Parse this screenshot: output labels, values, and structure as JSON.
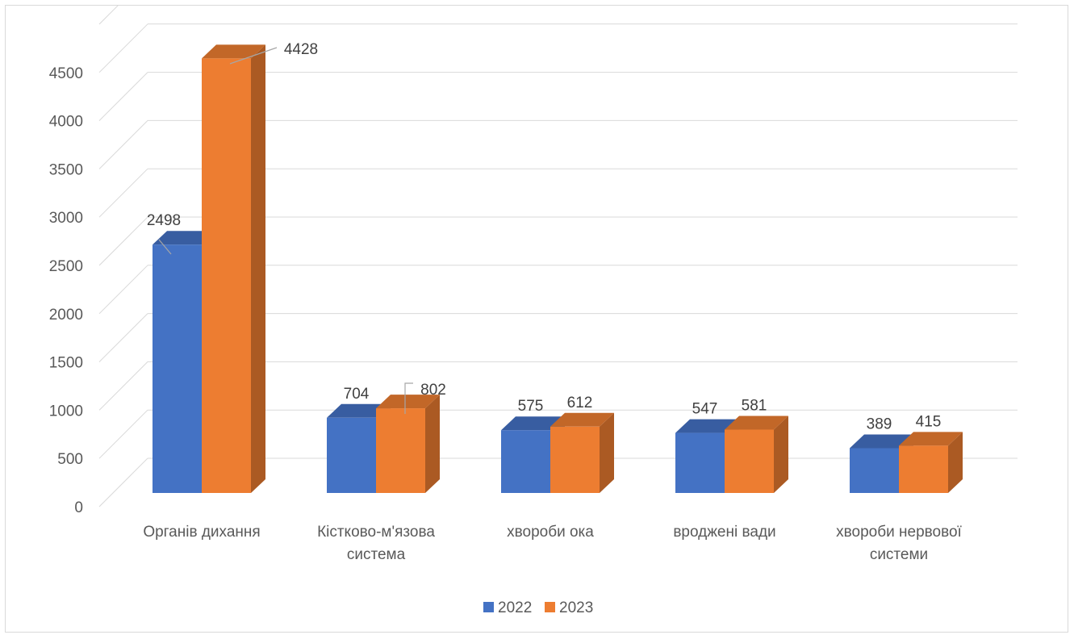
{
  "chart_data": {
    "type": "bar",
    "three_d": true,
    "categories": [
      [
        "Органів дихання"
      ],
      [
        "Кістково-м'язова",
        "система"
      ],
      [
        "хвороби ока"
      ],
      [
        "вроджені вади"
      ],
      [
        "хвороби нервової",
        "системи"
      ]
    ],
    "series": [
      {
        "name": "2022",
        "color": "#4472c4",
        "values": [
          2498,
          704,
          575,
          547,
          389
        ]
      },
      {
        "name": "2023",
        "color": "#ed7d31",
        "values": [
          4428,
          802,
          612,
          581,
          415
        ]
      }
    ],
    "y_ticks": [
      "0",
      "500",
      "1000",
      "1500",
      "2000",
      "2500",
      "3000",
      "3500",
      "4000",
      "4500"
    ],
    "ylim": [
      0,
      5000
    ],
    "grid": true,
    "data_labels": true,
    "legend": {
      "position": "bottom"
    },
    "title": "",
    "xlabel": "",
    "ylabel": ""
  }
}
